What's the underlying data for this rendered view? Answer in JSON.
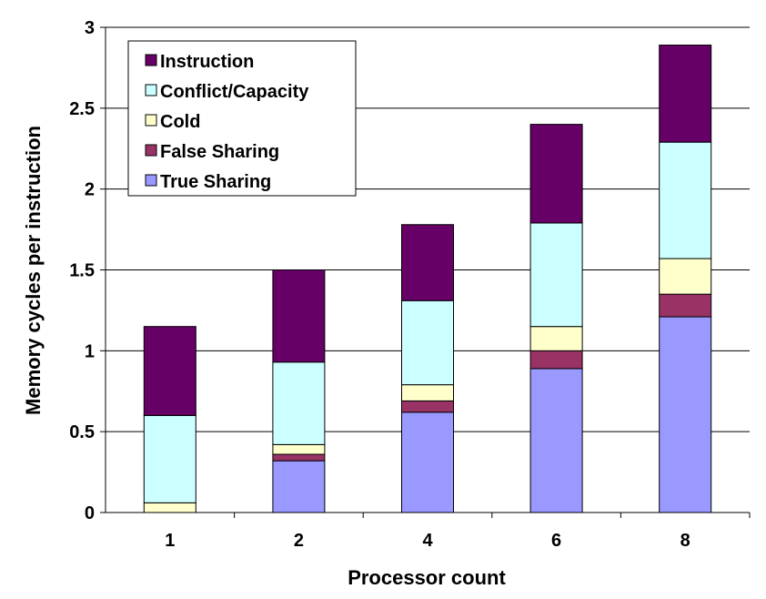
{
  "chart_data": {
    "type": "bar",
    "stacked": true,
    "title": "",
    "xlabel": "Processor count",
    "ylabel": "Memory cycles per instruction",
    "categories": [
      "1",
      "2",
      "4",
      "6",
      "8"
    ],
    "ylim": [
      0,
      3
    ],
    "yticks": [
      "0",
      "0.5",
      "1",
      "1.5",
      "2",
      "2.5",
      "3"
    ],
    "grid": true,
    "legend_position": "top-left",
    "series": [
      {
        "name": "True Sharing",
        "color": "#9999ff",
        "values": [
          0.0,
          0.32,
          0.62,
          0.89,
          1.21
        ]
      },
      {
        "name": "False Sharing",
        "color": "#993366",
        "values": [
          0.0,
          0.04,
          0.07,
          0.11,
          0.14
        ]
      },
      {
        "name": "Cold",
        "color": "#ffffcc",
        "values": [
          0.06,
          0.06,
          0.1,
          0.15,
          0.22
        ]
      },
      {
        "name": "Conflict/Capacity",
        "color": "#ccffff",
        "values": [
          0.54,
          0.51,
          0.52,
          0.64,
          0.72
        ]
      },
      {
        "name": "Instruction",
        "color": "#660066",
        "values": [
          0.55,
          0.57,
          0.47,
          0.61,
          0.6
        ]
      }
    ],
    "legend_order": [
      "Instruction",
      "Conflict/Capacity",
      "Cold",
      "False Sharing",
      "True Sharing"
    ]
  }
}
